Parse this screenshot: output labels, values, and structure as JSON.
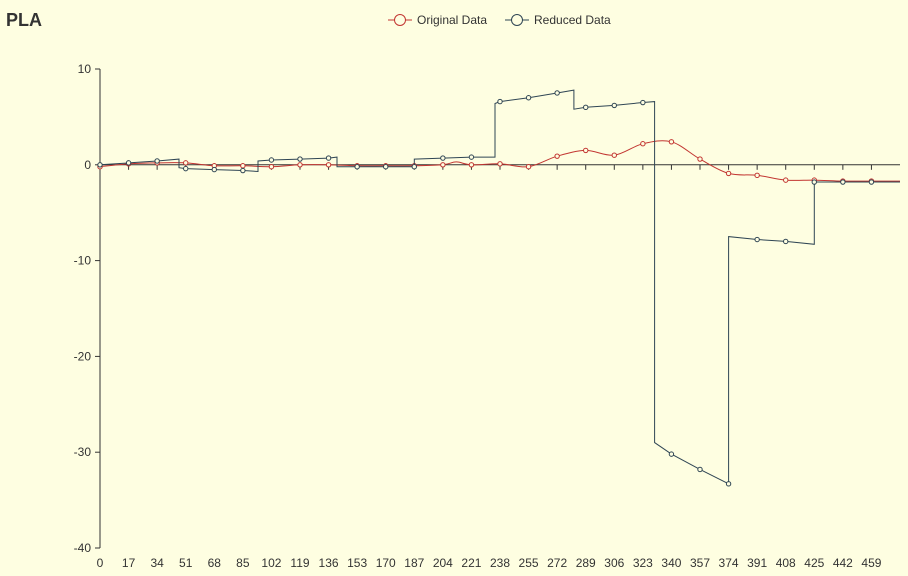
{
  "chart_data": {
    "type": "line",
    "title": "PLA",
    "xlabel": "",
    "ylabel": "",
    "legend_position": "top-center",
    "grid": false,
    "xlim": [
      0,
      476
    ],
    "ylim": [
      -40,
      10
    ],
    "x_ticks": [
      "0",
      "17",
      "34",
      "51",
      "68",
      "85",
      "102",
      "119",
      "136",
      "153",
      "170",
      "187",
      "204",
      "221",
      "238",
      "255",
      "272",
      "289",
      "306",
      "323",
      "340",
      "357",
      "374",
      "391",
      "408",
      "425",
      "442",
      "459"
    ],
    "y_ticks": [
      10,
      0,
      -10,
      -20,
      -30,
      -40
    ],
    "series": [
      {
        "name": "Original Data",
        "color": "#c23531",
        "smooth": true,
        "points": [
          [
            0,
            -0.2
          ],
          [
            17,
            0.1
          ],
          [
            34,
            0.2
          ],
          [
            51,
            0.2
          ],
          [
            68,
            -0.1
          ],
          [
            85,
            -0.1
          ],
          [
            102,
            -0.2
          ],
          [
            119,
            0.0
          ],
          [
            136,
            0.0
          ],
          [
            153,
            -0.1
          ],
          [
            170,
            -0.1
          ],
          [
            187,
            -0.1
          ],
          [
            204,
            0.0
          ],
          [
            212,
            0.3
          ],
          [
            221,
            0.0
          ],
          [
            238,
            0.1
          ],
          [
            255,
            -0.2
          ],
          [
            272,
            0.9
          ],
          [
            289,
            1.5
          ],
          [
            306,
            1.0
          ],
          [
            323,
            2.2
          ],
          [
            340,
            2.4
          ],
          [
            357,
            0.6
          ],
          [
            374,
            -0.9
          ],
          [
            391,
            -1.1
          ],
          [
            408,
            -1.6
          ],
          [
            425,
            -1.6
          ],
          [
            442,
            -1.7
          ],
          [
            459,
            -1.7
          ],
          [
            476,
            -1.7
          ]
        ]
      },
      {
        "name": "Reduced Data",
        "color": "#2f4554",
        "smooth": false,
        "segments": [
          [
            [
              0,
              0.0
            ],
            [
              17,
              0.2
            ],
            [
              34,
              0.4
            ],
            [
              47,
              0.6
            ]
          ],
          [
            [
              47,
              -0.3
            ],
            [
              51,
              -0.4
            ],
            [
              68,
              -0.5
            ],
            [
              85,
              -0.6
            ],
            [
              94,
              -0.7
            ]
          ],
          [
            [
              94,
              0.4
            ],
            [
              102,
              0.5
            ],
            [
              119,
              0.6
            ],
            [
              136,
              0.7
            ],
            [
              141,
              0.8
            ]
          ],
          [
            [
              141,
              -0.2
            ],
            [
              153,
              -0.2
            ],
            [
              170,
              -0.2
            ],
            [
              187,
              -0.2
            ]
          ],
          [
            [
              187,
              0.6
            ],
            [
              204,
              0.7
            ],
            [
              221,
              0.8
            ],
            [
              235,
              0.8
            ]
          ],
          [
            [
              235,
              6.4
            ],
            [
              238,
              6.6
            ],
            [
              255,
              7.0
            ],
            [
              272,
              7.5
            ],
            [
              282,
              7.8
            ]
          ],
          [
            [
              282,
              5.8
            ],
            [
              289,
              6.0
            ],
            [
              306,
              6.2
            ],
            [
              323,
              6.5
            ],
            [
              330,
              6.6
            ]
          ],
          [
            [
              330,
              -29.0
            ],
            [
              340,
              -30.2
            ],
            [
              357,
              -31.8
            ],
            [
              374,
              -33.3
            ]
          ],
          [
            [
              374,
              -7.5
            ],
            [
              391,
              -7.8
            ],
            [
              408,
              -8.0
            ],
            [
              425,
              -8.3
            ]
          ],
          [
            [
              425,
              -1.8
            ],
            [
              442,
              -1.8
            ],
            [
              459,
              -1.8
            ],
            [
              476,
              -1.8
            ]
          ]
        ],
        "markers": [
          [
            0,
            0.0
          ],
          [
            17,
            0.2
          ],
          [
            34,
            0.4
          ],
          [
            51,
            -0.4
          ],
          [
            68,
            -0.5
          ],
          [
            85,
            -0.6
          ],
          [
            102,
            0.5
          ],
          [
            119,
            0.6
          ],
          [
            136,
            0.7
          ],
          [
            153,
            -0.2
          ],
          [
            170,
            -0.2
          ],
          [
            187,
            -0.2
          ],
          [
            204,
            0.7
          ],
          [
            221,
            0.8
          ],
          [
            238,
            6.6
          ],
          [
            255,
            7.0
          ],
          [
            272,
            7.5
          ],
          [
            289,
            6.0
          ],
          [
            306,
            6.2
          ],
          [
            323,
            6.5
          ],
          [
            340,
            -30.2
          ],
          [
            357,
            -31.8
          ],
          [
            374,
            -33.3
          ],
          [
            391,
            -7.8
          ],
          [
            408,
            -8.0
          ],
          [
            425,
            -1.8
          ],
          [
            442,
            -1.8
          ],
          [
            459,
            -1.8
          ]
        ]
      }
    ]
  }
}
